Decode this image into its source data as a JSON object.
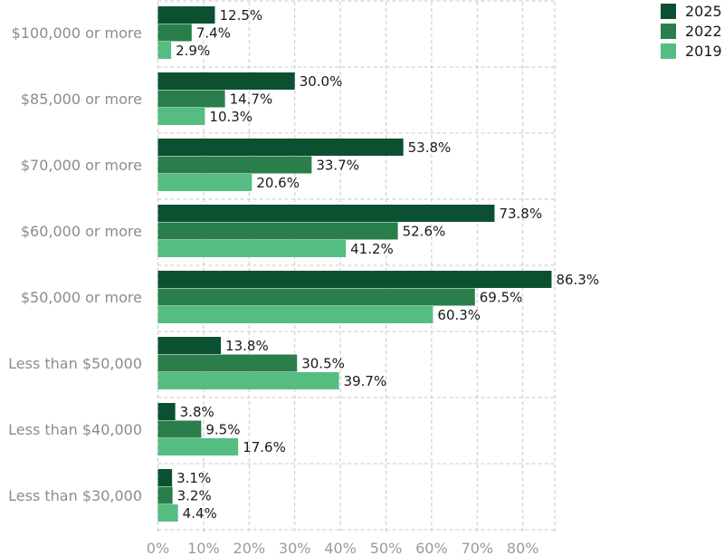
{
  "chart_data": {
    "type": "bar",
    "orientation": "horizontal",
    "categories": [
      "$100,000 or more",
      "$85,000 or more",
      "$70,000 or more",
      "$60,000 or more",
      "$50,000 or more",
      "Less than $50,000",
      "Less than $40,000",
      "Less than $30,000"
    ],
    "series": [
      {
        "name": "2025",
        "color": "#0b5131",
        "values": [
          12.5,
          30.0,
          53.8,
          73.8,
          86.3,
          13.8,
          3.8,
          3.1
        ]
      },
      {
        "name": "2022",
        "color": "#2a7e4b",
        "values": [
          7.4,
          14.7,
          33.7,
          52.6,
          69.5,
          30.5,
          9.5,
          3.2
        ]
      },
      {
        "name": "2019",
        "color": "#55bd82",
        "values": [
          2.9,
          10.3,
          20.6,
          41.2,
          60.3,
          39.7,
          17.6,
          4.4
        ]
      }
    ],
    "value_format": "percent_1dp",
    "xlim": [
      0,
      87
    ],
    "xticks": [
      "0%",
      "10%",
      "20%",
      "30%",
      "40%",
      "50%",
      "60%",
      "70%",
      "80%"
    ],
    "xtick_values": [
      0,
      10,
      20,
      30,
      40,
      50,
      60,
      70,
      80
    ],
    "grid": true,
    "legend": "top-right",
    "title": "",
    "xlabel": "",
    "ylabel": ""
  }
}
